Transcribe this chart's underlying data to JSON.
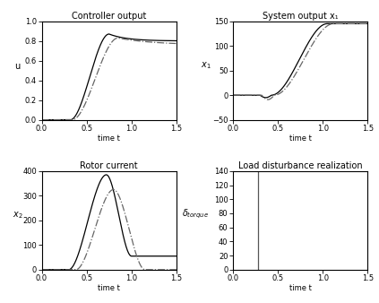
{
  "titles": [
    "Controller output",
    "System output x₁",
    "Rotor current",
    "Load disturbance realization"
  ],
  "xlabels": [
    "time t",
    "time t",
    "time t",
    "time t"
  ],
  "ylabels_0": "u",
  "ylabels_1": "x₁",
  "ylabels_2": "x₂",
  "xlims": [
    0,
    1.5
  ],
  "ylims_0": [
    0,
    1.0
  ],
  "ylims_1": [
    -50,
    150
  ],
  "ylims_2": [
    0,
    400
  ],
  "ylims_3": [
    0,
    140
  ],
  "yticks_0": [
    0,
    0.2,
    0.4,
    0.6,
    0.8,
    1.0
  ],
  "yticks_1": [
    -50,
    0,
    50,
    100,
    150
  ],
  "yticks_2": [
    0,
    100,
    200,
    300,
    400
  ],
  "yticks_3": [
    0,
    20,
    40,
    60,
    80,
    100,
    120,
    140
  ],
  "xticks": [
    0,
    0.5,
    1.0,
    1.5
  ],
  "line_color": "#000000",
  "dashdot_color": "#666666",
  "vline_color": "#555555",
  "vline_x": 0.28,
  "figsize": [
    4.23,
    3.38
  ],
  "dpi": 100
}
